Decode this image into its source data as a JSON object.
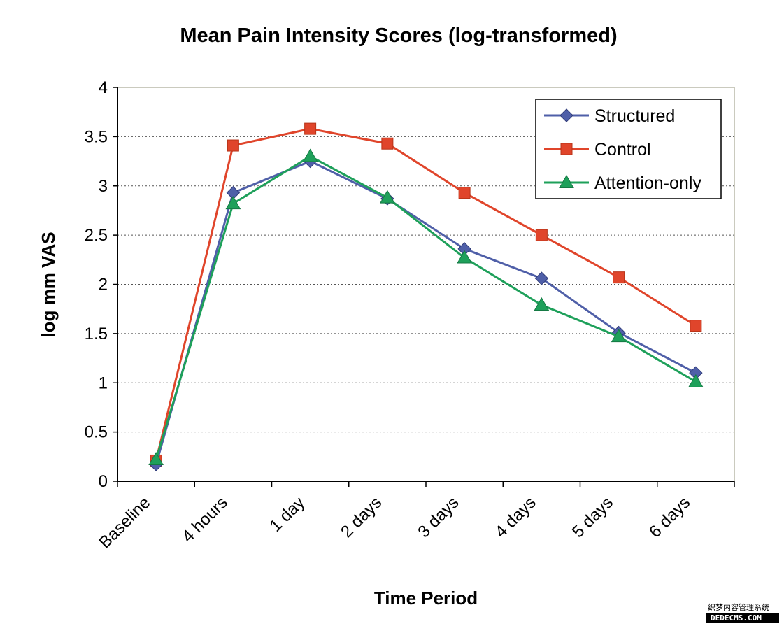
{
  "chart_data": {
    "type": "line",
    "title": "Mean Pain Intensity Scores (log-transformed)",
    "xlabel": "Time Period",
    "ylabel": "log mm VAS",
    "categories": [
      "Baseline",
      "4 hours",
      "1 day",
      "2 days",
      "3 days",
      "4 days",
      "5 days",
      "6 days"
    ],
    "ylim": [
      0,
      4
    ],
    "yticks": [
      "0",
      "0.5",
      "1",
      "1.5",
      "2",
      "2.5",
      "3",
      "3.5",
      "4"
    ],
    "grid": "horizontal dotted",
    "legend_position": "top-right",
    "series": [
      {
        "name": "Structured",
        "color": "#4f5fa8",
        "marker": "diamond",
        "values": [
          0.17,
          2.93,
          3.25,
          2.87,
          2.36,
          2.06,
          1.51,
          1.1
        ]
      },
      {
        "name": "Control",
        "color": "#e0452b",
        "marker": "square",
        "values": [
          0.21,
          3.41,
          3.58,
          3.43,
          2.93,
          2.5,
          2.07,
          1.58
        ]
      },
      {
        "name": "Attention-only",
        "color": "#1ea05a",
        "marker": "triangle",
        "values": [
          0.22,
          2.82,
          3.3,
          2.88,
          2.27,
          1.79,
          1.47,
          1.01
        ]
      }
    ]
  },
  "watermark": {
    "line1": "织梦内容管理系统",
    "line2": "DEDECMS.COM"
  }
}
